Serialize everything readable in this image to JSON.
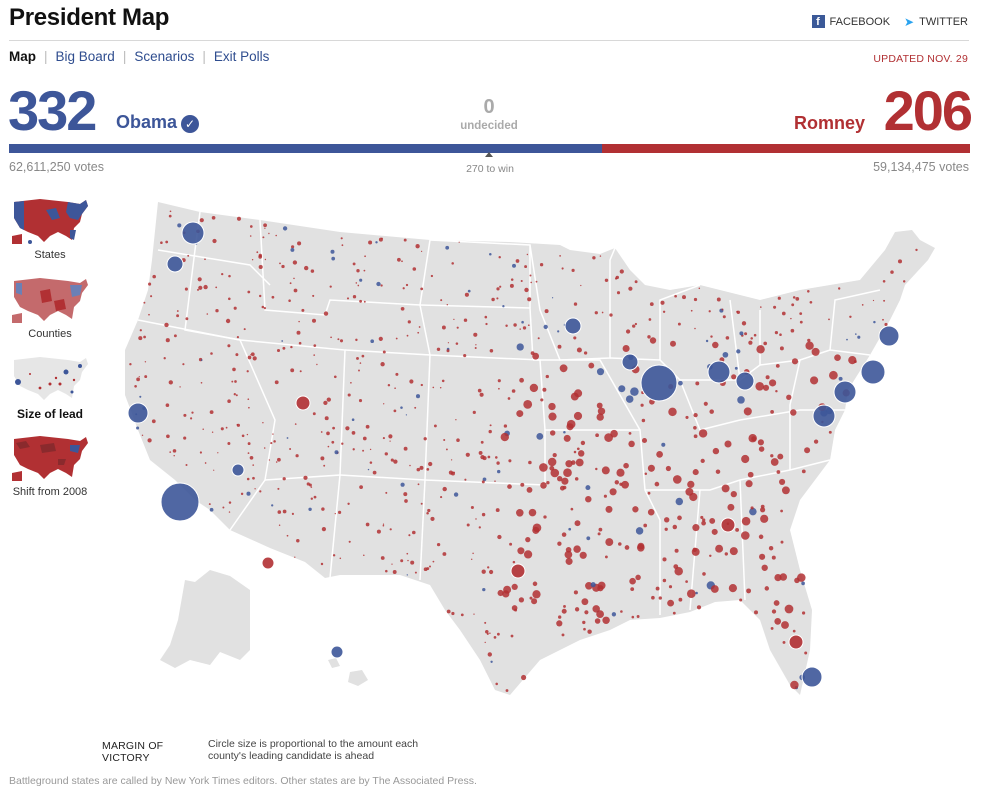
{
  "header": {
    "title": "President Map",
    "social": {
      "facebook": "FACEBOOK",
      "twitter": "TWITTER"
    },
    "updated": "UPDATED NOV. 29"
  },
  "nav": {
    "tabs": [
      {
        "label": "Map",
        "active": true
      },
      {
        "label": "Big Board",
        "active": false
      },
      {
        "label": "Scenarios",
        "active": false
      },
      {
        "label": "Exit Polls",
        "active": false
      }
    ]
  },
  "tally": {
    "obama": {
      "electoral": "332",
      "name": "Obama",
      "votes": "62,611,250 votes",
      "color": "#3d5699",
      "winner": true
    },
    "romney": {
      "electoral": "206",
      "name": "Romney",
      "votes": "59,134,475 votes",
      "color": "#b13033"
    },
    "undecided": {
      "count": "0",
      "label": "undecided"
    },
    "win_threshold": {
      "label": "270 to win",
      "value": 270,
      "total": 538
    },
    "bar_share": {
      "obama": 332,
      "undecided": 0,
      "romney": 206
    }
  },
  "views": [
    {
      "label": "States",
      "active": false,
      "icon": "states-map-thumbnail-icon"
    },
    {
      "label": "Counties",
      "active": false,
      "icon": "counties-map-thumbnail-icon"
    },
    {
      "label": "Size of lead",
      "active": true,
      "icon": "size-of-lead-map-thumbnail-icon"
    },
    {
      "label": "Shift from 2008",
      "active": false,
      "icon": "shift-from-2008-map-thumbnail-icon"
    }
  ],
  "legend": {
    "title": "MARGIN OF VICTORY",
    "description": "Circle size is proportional to the amount each county's leading candidate is ahead"
  },
  "footer": "Battleground states are called by New York Times editors. Other states are by The Associated Press.",
  "colors": {
    "democrat": "#3d5699",
    "republican": "#b13033",
    "land": "#e1e1e1",
    "border": "#ffffff"
  }
}
